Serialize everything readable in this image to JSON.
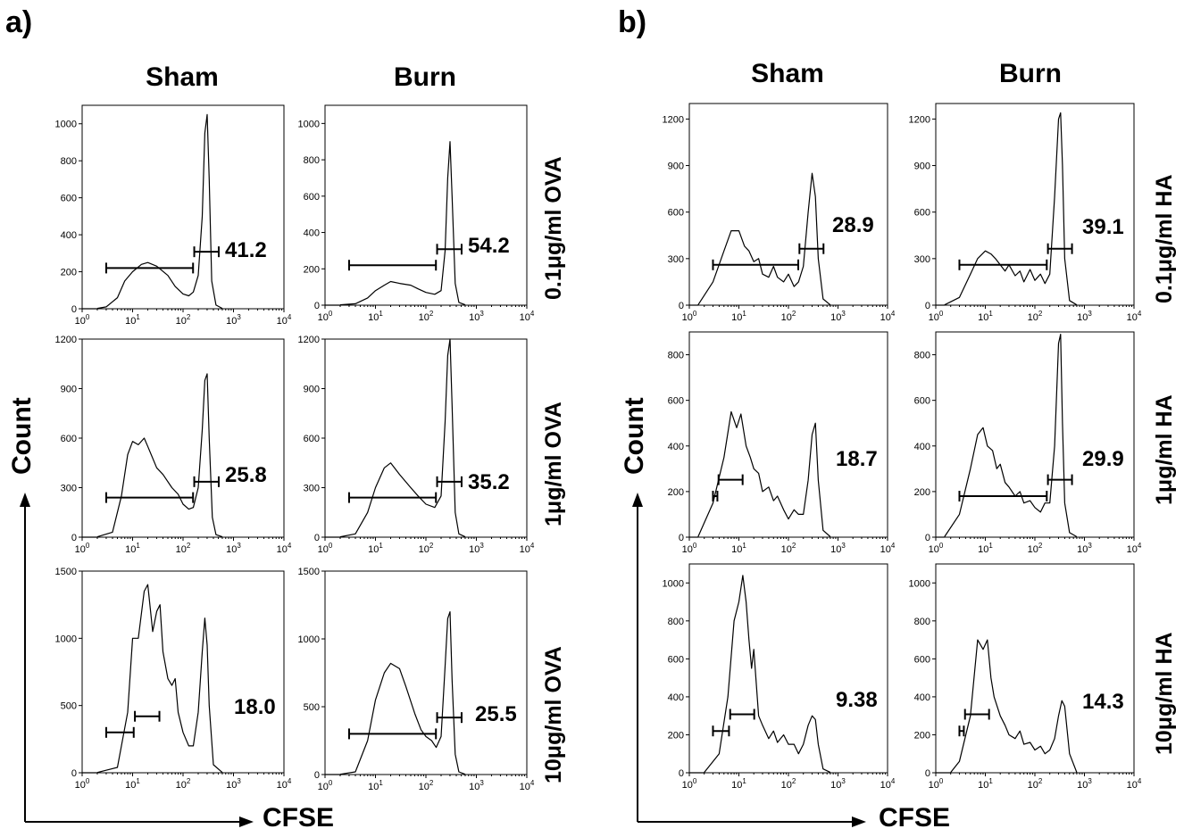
{
  "figure": {
    "panel_a": {
      "letter": "a)",
      "columns": [
        "Sham",
        "Burn"
      ],
      "rows": [
        "0.1μg/ml OVA",
        "1μg/ml OVA",
        "10μg/ml OVA"
      ],
      "y_axis_label": "Count",
      "x_axis_label": "CFSE"
    },
    "panel_b": {
      "letter": "b)",
      "columns": [
        "Sham",
        "Burn"
      ],
      "rows": [
        "0.1μg/ml HA",
        "1μg/ml HA",
        "10μg/ml HA"
      ],
      "y_axis_label": "Count",
      "x_axis_label": "CFSE"
    }
  },
  "chart_data": [
    {
      "type": "area",
      "panel": "a",
      "column": "Sham",
      "row": "0.1μg/ml OVA",
      "xscale": "log",
      "xlim": [
        1,
        10000
      ],
      "ylim": [
        0,
        1100
      ],
      "yticks": [
        0,
        200,
        400,
        600,
        800,
        1000
      ],
      "x": [
        2,
        3,
        5,
        7,
        10,
        15,
        20,
        30,
        50,
        70,
        100,
        130,
        160,
        200,
        240,
        270,
        300,
        330,
        370,
        450,
        600
      ],
      "values": [
        2,
        10,
        60,
        150,
        200,
        240,
        250,
        230,
        180,
        120,
        80,
        70,
        90,
        180,
        500,
        950,
        1050,
        700,
        150,
        20,
        2
      ],
      "gate_value": "41.2"
    },
    {
      "type": "area",
      "panel": "a",
      "column": "Burn",
      "row": "0.1μg/ml OVA",
      "xscale": "log",
      "xlim": [
        1,
        10000
      ],
      "ylim": [
        0,
        1100
      ],
      "yticks": [
        0,
        200,
        400,
        600,
        800,
        1000
      ],
      "x": [
        2,
        4,
        7,
        10,
        15,
        20,
        30,
        50,
        70,
        100,
        150,
        200,
        240,
        270,
        300,
        330,
        380,
        450,
        600
      ],
      "values": [
        2,
        8,
        40,
        80,
        110,
        130,
        120,
        110,
        90,
        70,
        60,
        80,
        300,
        700,
        900,
        600,
        120,
        15,
        2
      ],
      "gate_value": "54.2"
    },
    {
      "type": "area",
      "panel": "a",
      "column": "Sham",
      "row": "1μg/ml OVA",
      "xscale": "log",
      "xlim": [
        1,
        10000
      ],
      "ylim": [
        0,
        1200
      ],
      "yticks": [
        0,
        300,
        600,
        900,
        1200
      ],
      "x": [
        2,
        4,
        6,
        8,
        10,
        13,
        17,
        20,
        30,
        40,
        60,
        80,
        100,
        130,
        160,
        200,
        240,
        270,
        300,
        330,
        380,
        450,
        600
      ],
      "values": [
        2,
        30,
        250,
        500,
        580,
        560,
        600,
        550,
        420,
        380,
        300,
        260,
        200,
        170,
        180,
        300,
        650,
        950,
        990,
        600,
        120,
        15,
        2
      ],
      "gate_value": "25.8"
    },
    {
      "type": "area",
      "panel": "a",
      "column": "Burn",
      "row": "1μg/ml OVA",
      "xscale": "log",
      "xlim": [
        1,
        10000
      ],
      "ylim": [
        0,
        1200
      ],
      "yticks": [
        0,
        300,
        600,
        900,
        1200
      ],
      "x": [
        2,
        4,
        7,
        10,
        15,
        20,
        30,
        50,
        70,
        100,
        150,
        200,
        240,
        270,
        300,
        330,
        380,
        450,
        600
      ],
      "values": [
        2,
        20,
        150,
        300,
        420,
        450,
        380,
        300,
        250,
        200,
        180,
        250,
        700,
        1100,
        1200,
        800,
        150,
        20,
        2
      ],
      "gate_value": "35.2"
    },
    {
      "type": "area",
      "panel": "a",
      "column": "Sham",
      "row": "10μg/ml OVA",
      "xscale": "log",
      "xlim": [
        1,
        10000
      ],
      "ylim": [
        0,
        1500
      ],
      "yticks": [
        0,
        500,
        1000,
        1500
      ],
      "x": [
        2,
        5,
        8,
        10,
        13,
        17,
        20,
        25,
        30,
        35,
        40,
        50,
        60,
        70,
        80,
        100,
        130,
        160,
        200,
        240,
        270,
        300,
        330,
        400,
        600
      ],
      "values": [
        2,
        40,
        450,
        1000,
        1000,
        1350,
        1400,
        1050,
        1200,
        1250,
        900,
        700,
        650,
        700,
        450,
        300,
        200,
        200,
        450,
        900,
        1150,
        950,
        500,
        60,
        2
      ],
      "gate_value": "18.0"
    },
    {
      "type": "area",
      "panel": "a",
      "column": "Burn",
      "row": "10μg/ml OVA",
      "xscale": "log",
      "xlim": [
        1,
        10000
      ],
      "ylim": [
        0,
        1500
      ],
      "yticks": [
        0,
        500,
        1000,
        1500
      ],
      "x": [
        2,
        4,
        7,
        10,
        15,
        20,
        30,
        40,
        60,
        80,
        100,
        130,
        160,
        200,
        240,
        270,
        300,
        330,
        380,
        450,
        600
      ],
      "values": [
        2,
        20,
        250,
        550,
        750,
        820,
        780,
        650,
        450,
        330,
        280,
        250,
        200,
        280,
        800,
        1150,
        1200,
        700,
        150,
        20,
        2
      ],
      "gate_value": "25.5"
    },
    {
      "type": "area",
      "panel": "b",
      "column": "Sham",
      "row": "0.1μg/ml HA",
      "xscale": "log",
      "xlim": [
        1,
        10000
      ],
      "ylim": [
        0,
        1300
      ],
      "yticks": [
        0,
        300,
        600,
        900,
        1200
      ],
      "x": [
        1.5,
        3,
        5,
        7,
        10,
        13,
        16,
        20,
        25,
        30,
        40,
        50,
        60,
        80,
        100,
        130,
        160,
        200,
        250,
        300,
        350,
        400,
        500,
        700
      ],
      "values": [
        2,
        150,
        350,
        480,
        480,
        380,
        350,
        280,
        300,
        200,
        180,
        250,
        180,
        150,
        200,
        120,
        150,
        250,
        600,
        850,
        700,
        300,
        40,
        2
      ],
      "gate_value": "28.9"
    },
    {
      "type": "area",
      "panel": "b",
      "column": "Burn",
      "row": "0.1μg/ml HA",
      "xscale": "log",
      "xlim": [
        1,
        10000
      ],
      "ylim": [
        0,
        1300
      ],
      "yticks": [
        0,
        300,
        600,
        900,
        1200
      ],
      "x": [
        1.5,
        3,
        5,
        7,
        10,
        13,
        16,
        20,
        25,
        30,
        40,
        50,
        60,
        80,
        100,
        130,
        160,
        200,
        250,
        300,
        330,
        360,
        400,
        500,
        700
      ],
      "values": [
        2,
        50,
        200,
        300,
        350,
        330,
        300,
        260,
        220,
        260,
        190,
        220,
        150,
        230,
        160,
        200,
        140,
        200,
        700,
        1200,
        1240,
        900,
        300,
        30,
        2
      ],
      "gate_value": "39.1"
    },
    {
      "type": "area",
      "panel": "b",
      "column": "Sham",
      "row": "1μg/ml HA",
      "xscale": "log",
      "xlim": [
        1,
        10000
      ],
      "ylim": [
        0,
        900
      ],
      "yticks": [
        0,
        200,
        400,
        600,
        800
      ],
      "x": [
        1.5,
        3,
        5,
        7,
        9,
        11,
        14,
        17,
        20,
        25,
        30,
        40,
        50,
        60,
        80,
        100,
        130,
        160,
        200,
        250,
        300,
        350,
        400,
        500,
        700
      ],
      "values": [
        2,
        150,
        350,
        550,
        480,
        540,
        400,
        350,
        300,
        280,
        200,
        220,
        160,
        180,
        120,
        80,
        120,
        100,
        100,
        250,
        450,
        500,
        250,
        30,
        2
      ],
      "gate_value": "18.7"
    },
    {
      "type": "area",
      "panel": "b",
      "column": "Burn",
      "row": "1μg/ml HA",
      "xscale": "log",
      "xlim": [
        1,
        10000
      ],
      "ylim": [
        0,
        900
      ],
      "yticks": [
        0,
        200,
        400,
        600,
        800
      ],
      "x": [
        1.5,
        3,
        5,
        7,
        9,
        11,
        14,
        17,
        20,
        25,
        30,
        40,
        50,
        60,
        80,
        100,
        130,
        160,
        200,
        250,
        300,
        330,
        360,
        400,
        500,
        700
      ],
      "values": [
        2,
        100,
        300,
        450,
        480,
        400,
        380,
        300,
        320,
        240,
        220,
        180,
        200,
        150,
        160,
        130,
        110,
        150,
        150,
        400,
        850,
        890,
        500,
        150,
        20,
        2
      ],
      "gate_value": "29.9"
    },
    {
      "type": "area",
      "panel": "b",
      "column": "Sham",
      "row": "10μg/ml HA",
      "xscale": "log",
      "xlim": [
        1,
        10000
      ],
      "ylim": [
        0,
        1100
      ],
      "yticks": [
        0,
        200,
        400,
        600,
        800,
        1000
      ],
      "x": [
        2,
        4,
        6,
        8,
        10,
        12,
        14,
        16,
        18,
        20,
        25,
        30,
        40,
        50,
        60,
        80,
        100,
        130,
        160,
        200,
        250,
        300,
        350,
        400,
        500,
        700
      ],
      "values": [
        2,
        100,
        400,
        800,
        900,
        1040,
        900,
        700,
        550,
        650,
        300,
        250,
        180,
        220,
        160,
        200,
        150,
        150,
        100,
        150,
        250,
        300,
        280,
        150,
        20,
        2
      ],
      "gate_value": "9.38"
    },
    {
      "type": "area",
      "panel": "b",
      "column": "Burn",
      "row": "10μg/ml HA",
      "xscale": "log",
      "xlim": [
        1,
        10000
      ],
      "ylim": [
        0,
        1100
      ],
      "yticks": [
        0,
        200,
        400,
        600,
        800,
        1000
      ],
      "x": [
        2,
        3,
        5,
        7,
        9,
        11,
        13,
        15,
        20,
        25,
        30,
        40,
        50,
        60,
        80,
        100,
        130,
        160,
        200,
        250,
        300,
        350,
        400,
        500,
        700
      ],
      "values": [
        2,
        60,
        300,
        700,
        650,
        700,
        500,
        400,
        300,
        250,
        200,
        180,
        220,
        150,
        160,
        120,
        140,
        100,
        120,
        180,
        300,
        380,
        350,
        100,
        2
      ],
      "gate_value": "14.3"
    }
  ]
}
